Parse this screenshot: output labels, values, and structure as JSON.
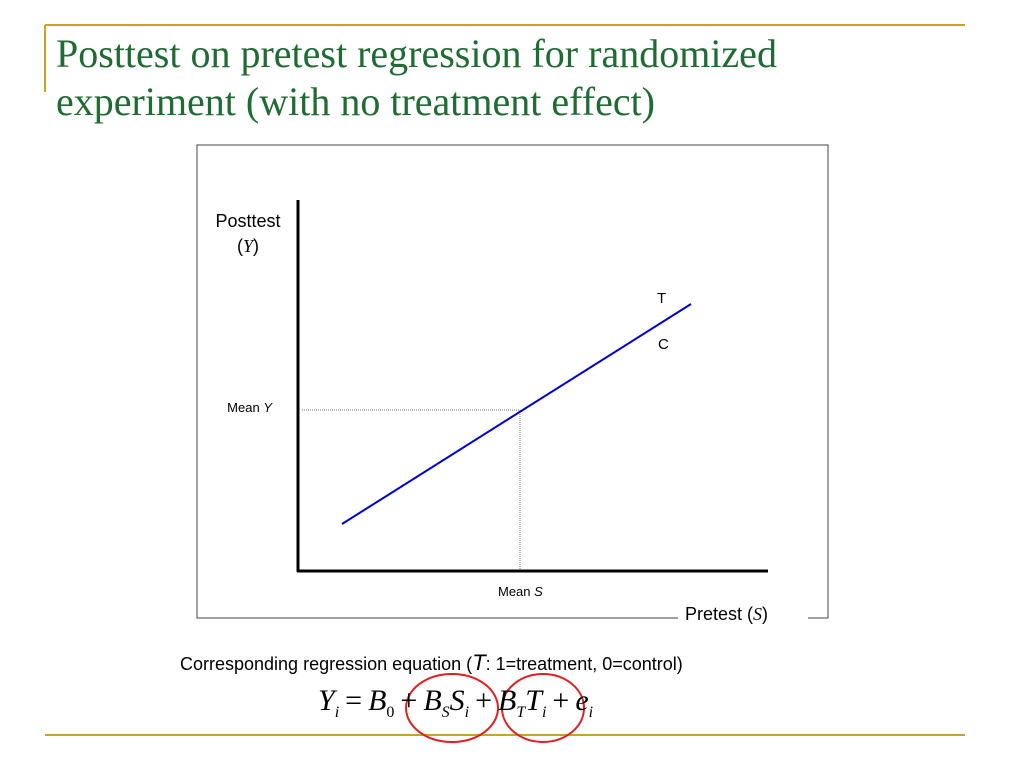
{
  "colors": {
    "title": "#1f6b33",
    "accent": "#c9a227",
    "line": "#0000cc",
    "circle": "#e02020",
    "frame": "#444444"
  },
  "title": {
    "line1": "Posttest on pretest regression for randomized",
    "line2": "experiment (with no treatment effect)"
  },
  "diagram": {
    "y_label": "Posttest",
    "y_var": "Y",
    "x_label": "Pretest",
    "x_var": "S",
    "mean_y_label": "Mean",
    "mean_y_var": "Y",
    "mean_s_label": "Mean",
    "mean_s_var": "S",
    "line_labels": {
      "treatment": "T",
      "control": "C"
    }
  },
  "caption": {
    "prefix": "Corresponding regression equation (",
    "var": "T",
    "suffix": ": 1=treatment, 0=control)"
  },
  "equation": {
    "lhs": "Y",
    "lhs_sub": "i",
    "b0": "B",
    "b0_sub": "0",
    "bs": "B",
    "bs_sub": "S",
    "s": "S",
    "s_sub": "i",
    "bt": "B",
    "bt_sub": "T",
    "t": "T",
    "t_sub": "i",
    "e": "e",
    "e_sub": "i",
    "eq": "=",
    "plus": "+"
  }
}
